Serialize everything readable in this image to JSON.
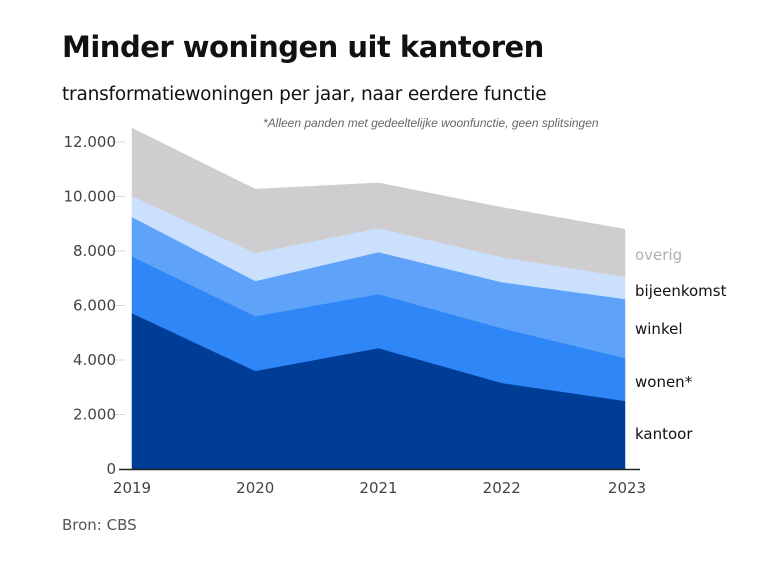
{
  "chart_data": {
    "type": "area",
    "stacked": true,
    "title": "Minder woningen uit kantoren",
    "subtitle": "transformatiewoningen per jaar, naar eerdere functie",
    "note": "*Alleen panden met gedeeltelijke woonfunctie, geen splitsingen",
    "source": "Bron: CBS",
    "xlabel": "",
    "ylabel": "",
    "x": [
      "2019",
      "2020",
      "2021",
      "2022",
      "2023"
    ],
    "ylim": [
      0,
      12000
    ],
    "yticks": [
      0,
      2000,
      4000,
      6000,
      8000,
      10000,
      12000
    ],
    "ytick_labels": [
      "0",
      "2.000",
      "4.000",
      "6.000",
      "8.000",
      "10.000",
      "12.000"
    ],
    "grid": false,
    "legend_placement": "right (inline labels)",
    "series": [
      {
        "name": "kantoor",
        "color": "#003d96",
        "label_color": "#111111",
        "values": [
          5720,
          3600,
          4440,
          3160,
          2500
        ]
      },
      {
        "name": "wonen*",
        "color": "#2e86f7",
        "label_color": "#111111",
        "values": [
          2080,
          2010,
          1980,
          2010,
          1570
        ]
      },
      {
        "name": "winkel",
        "color": "#5fa2fa",
        "label_color": "#111111",
        "values": [
          1450,
          1290,
          1540,
          1690,
          2170
        ]
      },
      {
        "name": "bijeenkomst",
        "color": "#cbe0fd",
        "label_color": "#111111",
        "values": [
          770,
          1030,
          880,
          920,
          810
        ]
      },
      {
        "name": "overig",
        "color": "#cfcdcf",
        "label_color": "#b0b0b0",
        "values": [
          2490,
          2340,
          1660,
          1820,
          1750
        ]
      }
    ]
  }
}
